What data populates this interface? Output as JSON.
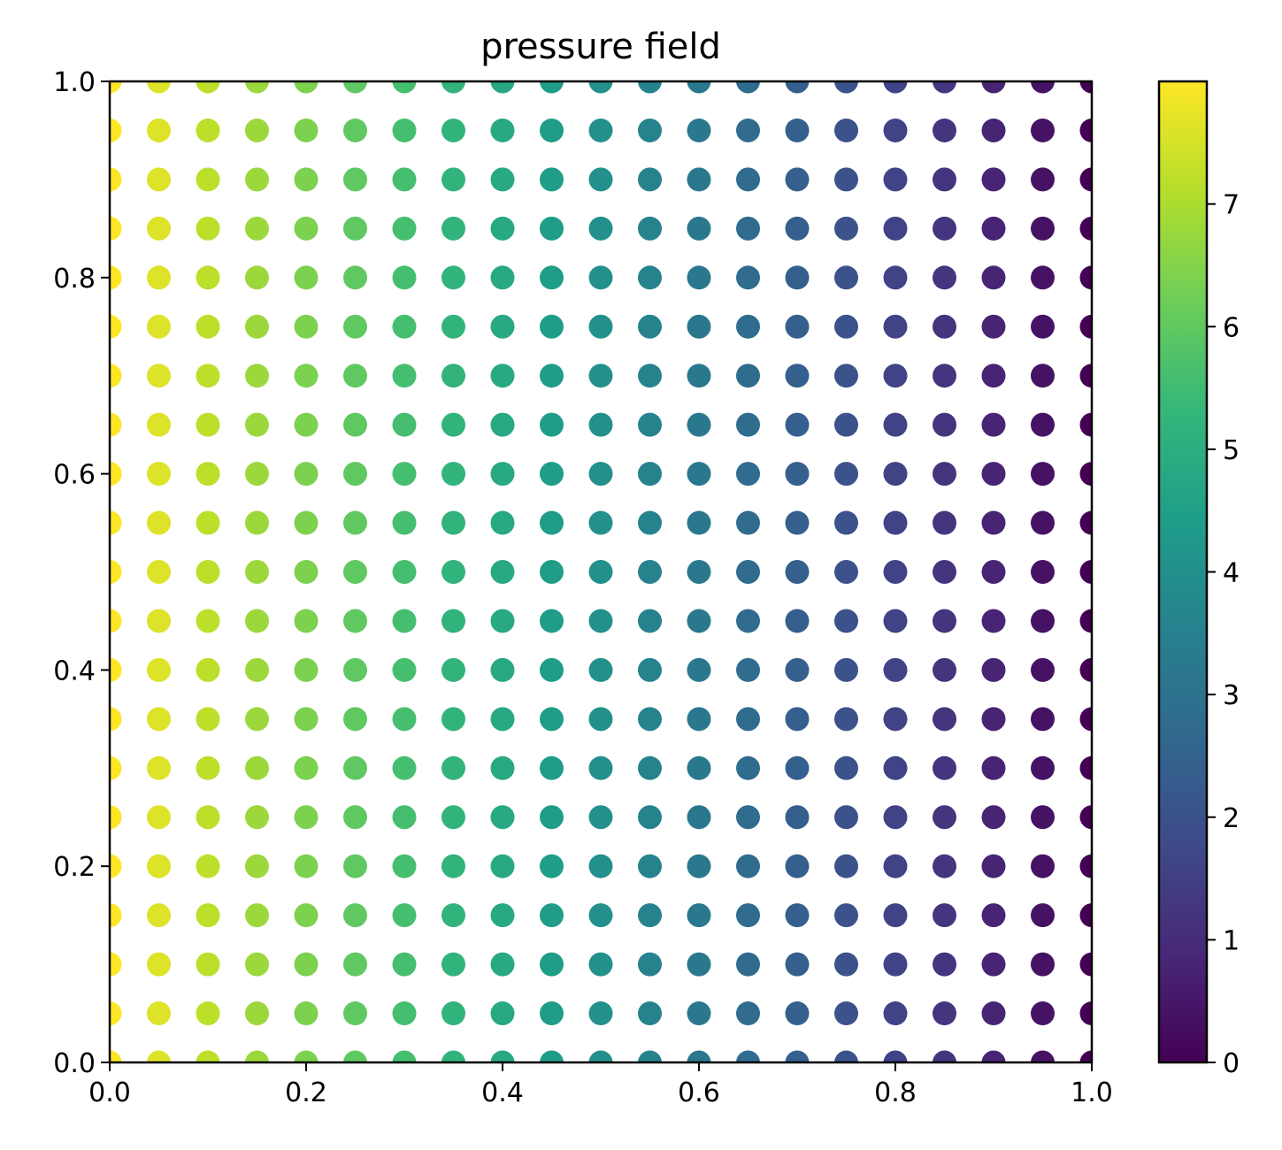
{
  "chart_data": {
    "type": "scatter",
    "title": "pressure field",
    "xlabel": "",
    "ylabel": "",
    "xlim": [
      0.0,
      1.0
    ],
    "ylim": [
      0.0,
      1.0
    ],
    "x_ticks": [
      "0.0",
      "0.2",
      "0.4",
      "0.6",
      "0.8",
      "1.0"
    ],
    "y_ticks": [
      "0.0",
      "0.2",
      "0.4",
      "0.6",
      "0.8",
      "1.0"
    ],
    "grid": false,
    "grid_points": {
      "x": [
        0.0,
        0.05,
        0.1,
        0.15,
        0.2,
        0.25,
        0.3,
        0.35,
        0.4,
        0.45,
        0.5,
        0.55,
        0.6,
        0.65,
        0.7,
        0.75,
        0.8,
        0.85,
        0.9,
        0.95,
        1.0
      ],
      "y": [
        0.0,
        0.05,
        0.1,
        0.15,
        0.2,
        0.25,
        0.3,
        0.35,
        0.4,
        0.45,
        0.5,
        0.55,
        0.6,
        0.65,
        0.7,
        0.75,
        0.8,
        0.85,
        0.9,
        0.95,
        1.0
      ]
    },
    "color_values_by_x": [
      8.0,
      7.6,
      7.2,
      6.8,
      6.4,
      6.0,
      5.6,
      5.2,
      4.8,
      4.4,
      4.0,
      3.6,
      3.2,
      2.8,
      2.4,
      2.0,
      1.6,
      1.2,
      0.8,
      0.4,
      0.0
    ],
    "colorbar": {
      "colormap": "viridis",
      "range": [
        0,
        8
      ],
      "ticks": [
        "0",
        "1",
        "2",
        "3",
        "4",
        "5",
        "6",
        "7"
      ],
      "stops": [
        "#440154",
        "#482878",
        "#3e4a89",
        "#31688e",
        "#26828e",
        "#1f9e89",
        "#35b779",
        "#6ece58",
        "#b5de2b",
        "#fde725"
      ]
    }
  }
}
